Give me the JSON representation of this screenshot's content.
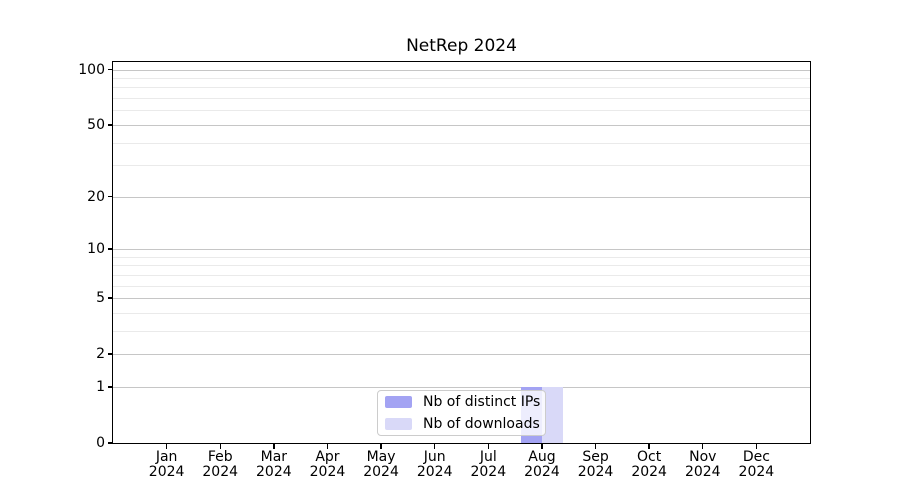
{
  "chart_data": {
    "type": "bar",
    "title": "NetRep 2024",
    "xlabel": "",
    "ylabel": "",
    "scale": "log-like: y maps as log10(1+y), ticks 0,1,2,5,10,20,50,100",
    "ylim": [
      0,
      110
    ],
    "grid": true,
    "legend_position": "lower center",
    "categories": [
      "Jan",
      "Feb",
      "Mar",
      "Apr",
      "May",
      "Jun",
      "Jul",
      "Aug",
      "Sep",
      "Oct",
      "Nov",
      "Dec"
    ],
    "category_year_labels": [
      "2024",
      "2024",
      "2024",
      "2024",
      "2024",
      "2024",
      "2024",
      "2024",
      "2024",
      "2024",
      "2024",
      "2024"
    ],
    "y_major_ticks": [
      0,
      1,
      2,
      5,
      10,
      20,
      50,
      100
    ],
    "y_minor_gridlines": [
      3,
      4,
      6,
      7,
      8,
      9,
      30,
      40,
      60,
      70,
      80,
      90
    ],
    "series": [
      {
        "name": "Nb of distinct IPs",
        "color": "#a3a3f3",
        "values": [
          0,
          0,
          0,
          0,
          0,
          0,
          0,
          1,
          0,
          0,
          0,
          0
        ]
      },
      {
        "name": "Nb of downloads",
        "color": "#d9d9f8",
        "values": [
          0,
          0,
          0,
          0,
          0,
          0,
          0,
          1,
          0,
          0,
          0,
          0
        ]
      }
    ]
  },
  "colors": {
    "grid_major": "#c6c6c6",
    "grid_minor": "#eaeaea",
    "axis": "#000000",
    "legend_border": "#cccccc",
    "background": "#ffffff"
  }
}
